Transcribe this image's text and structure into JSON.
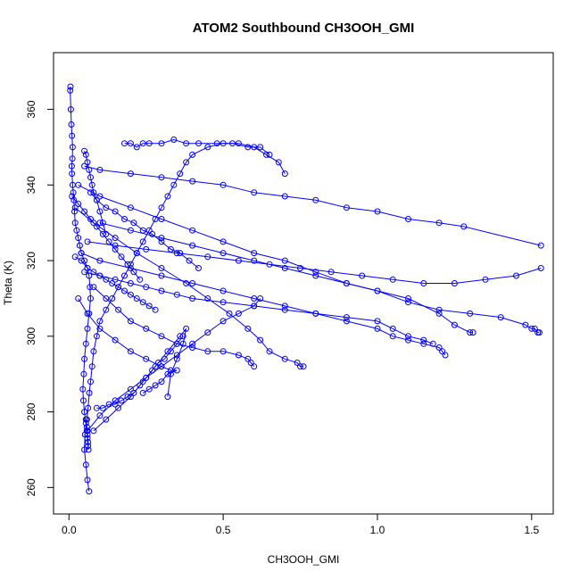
{
  "chart_data": {
    "type": "line",
    "title": "ATOM2 Southbound CH3OOH_GMI",
    "xlabel": "CH3OOH_GMI",
    "ylabel": "Theta (K)",
    "xlim": [
      -0.05,
      1.57
    ],
    "ylim": [
      253,
      375
    ],
    "xticks": [
      0.0,
      0.5,
      1.0,
      1.5
    ],
    "xtick_labels": [
      "0.0",
      "0.5",
      "1.0",
      "1.5"
    ],
    "yticks": [
      260,
      280,
      300,
      320,
      340,
      360
    ],
    "ytick_labels": [
      "260",
      "280",
      "300",
      "320",
      "340",
      "360"
    ],
    "grid": false,
    "legend": "none",
    "series_color": "#0000ff",
    "marker": "open-circle",
    "series": [
      {
        "x": [
          0.005,
          0.004,
          0.006,
          0.008,
          0.01,
          0.012,
          0.011,
          0.009,
          0.01,
          0.012,
          0.014,
          0.016,
          0.018,
          0.02,
          0.025,
          0.03,
          0.035,
          0.04,
          0.05,
          0.06,
          0.065,
          0.068,
          0.07,
          0.065,
          0.06,
          0.055,
          0.05,
          0.048,
          0.045,
          0.047,
          0.05,
          0.055,
          0.058,
          0.06,
          0.062,
          0.063,
          0.062,
          0.06,
          0.058,
          0.055
        ],
        "y": [
          366,
          365,
          360,
          356,
          353,
          350,
          347,
          345,
          343,
          340,
          338,
          336,
          333,
          330,
          328,
          326,
          324,
          322,
          320,
          318,
          316,
          313,
          310,
          306,
          302,
          298,
          294,
          290,
          286,
          283,
          280,
          277,
          275,
          273,
          271,
          270,
          272,
          274,
          276,
          278
        ]
      },
      {
        "x": [
          0.065,
          0.06,
          0.055,
          0.05,
          0.052,
          0.058,
          0.062,
          0.066,
          0.07,
          0.075,
          0.08,
          0.09,
          0.1,
          0.12,
          0.14,
          0.16,
          0.18,
          0.2,
          0.22,
          0.24,
          0.26,
          0.28,
          0.3,
          0.32,
          0.34,
          0.36,
          0.38,
          0.4,
          0.45,
          0.5,
          0.55,
          0.6,
          0.64,
          0.68,
          0.7
        ],
        "y": [
          259,
          262,
          266,
          270,
          274,
          278,
          281,
          285,
          288,
          292,
          296,
          300,
          304,
          307,
          310,
          313,
          316,
          319,
          322,
          325,
          328,
          331,
          334,
          337,
          340,
          343,
          346,
          348,
          350,
          351,
          351,
          350,
          348,
          346,
          343
        ]
      },
      {
        "x": [
          0.18,
          0.2,
          0.22,
          0.24,
          0.26,
          0.3,
          0.34,
          0.38,
          0.42,
          0.48,
          0.53,
          0.58,
          0.62,
          0.65
        ],
        "y": [
          351,
          351,
          350,
          351,
          351,
          351,
          352,
          351,
          351,
          351,
          351,
          350,
          350,
          348
        ]
      },
      {
        "x": [
          0.05,
          0.1,
          0.2,
          0.3,
          0.4,
          0.5,
          0.6,
          0.7,
          0.8,
          0.9,
          1.0,
          1.1,
          1.2,
          1.28,
          1.53
        ],
        "y": [
          345,
          344,
          343,
          342,
          341,
          340,
          338,
          337,
          336,
          334,
          333,
          331,
          330,
          329,
          324
        ]
      },
      {
        "x": [
          0.03,
          0.1,
          0.2,
          0.3,
          0.4,
          0.5,
          0.6,
          0.7,
          0.8,
          0.9,
          1.0,
          1.1,
          1.2,
          1.3,
          1.4,
          1.48,
          1.5,
          1.51,
          1.52,
          1.525
        ],
        "y": [
          340,
          337,
          334,
          331,
          328,
          325,
          322,
          320,
          317,
          314,
          312,
          309,
          307,
          306,
          305,
          303,
          302,
          302,
          301,
          301
        ]
      },
      {
        "x": [
          0.06,
          0.15,
          0.25,
          0.35,
          0.45,
          0.55,
          0.65,
          0.75,
          0.85,
          0.95,
          1.05,
          1.15,
          1.25,
          1.35,
          1.45,
          1.53
        ],
        "y": [
          325,
          324,
          323,
          322,
          321,
          320,
          319,
          318,
          317,
          316,
          315,
          314,
          314,
          315,
          316,
          318
        ]
      },
      {
        "x": [
          0.04,
          0.1,
          0.2,
          0.3,
          0.4,
          0.5,
          0.6,
          0.7,
          0.8,
          0.9,
          1.0,
          1.05,
          1.1,
          1.15,
          1.2,
          1.21,
          1.22
        ],
        "y": [
          322,
          320,
          318,
          316,
          314,
          312,
          310,
          308,
          306,
          304,
          302,
          300,
          299,
          298,
          297,
          296,
          295
        ]
      },
      {
        "x": [
          0.1,
          0.2,
          0.3,
          0.4,
          0.5,
          0.6,
          0.7,
          0.8,
          0.9,
          1.0,
          1.1,
          1.2,
          1.25,
          1.3,
          1.31
        ],
        "y": [
          330,
          328,
          326,
          324,
          322,
          320,
          318,
          316,
          314,
          312,
          310,
          306,
          303,
          301,
          301
        ]
      },
      {
        "x": [
          0.02,
          0.08,
          0.15,
          0.22,
          0.3,
          0.38,
          0.45,
          0.52,
          0.58,
          0.62,
          0.65,
          0.7,
          0.74,
          0.75,
          0.76
        ],
        "y": [
          334,
          330,
          326,
          322,
          318,
          314,
          310,
          306,
          302,
          299,
          296,
          294,
          293,
          292,
          292
        ]
      },
      {
        "x": [
          0.08,
          0.12,
          0.16,
          0.2,
          0.25,
          0.3,
          0.35,
          0.4,
          0.45,
          0.5,
          0.55,
          0.58,
          0.59,
          0.6
        ],
        "y": [
          313,
          310,
          307,
          304,
          302,
          300,
          298,
          297,
          296,
          296,
          295,
          294,
          293,
          292
        ]
      },
      {
        "x": [
          0.03,
          0.06,
          0.1,
          0.15,
          0.2,
          0.25,
          0.3,
          0.33,
          0.35,
          0.32,
          0.3,
          0.28,
          0.26,
          0.24
        ],
        "y": [
          310,
          306,
          302,
          299,
          296,
          294,
          292,
          291,
          291,
          290,
          288,
          287,
          286,
          285
        ]
      },
      {
        "x": [
          0.09,
          0.11,
          0.13,
          0.15,
          0.17,
          0.19,
          0.21,
          0.23,
          0.25,
          0.27,
          0.29,
          0.31,
          0.33,
          0.35,
          0.37
        ],
        "y": [
          281,
          281,
          282,
          282,
          283,
          284,
          285,
          287,
          289,
          291,
          293,
          294,
          296,
          298,
          300
        ]
      },
      {
        "x": [
          0.06,
          0.1,
          0.15,
          0.2,
          0.25,
          0.3,
          0.35,
          0.4,
          0.45,
          0.5,
          0.55,
          0.6,
          0.62
        ],
        "y": [
          275,
          279,
          283,
          286,
          289,
          292,
          295,
          298,
          301,
          304,
          306,
          308,
          310
        ]
      },
      {
        "x": [
          0.08,
          0.12,
          0.16,
          0.2,
          0.24,
          0.28,
          0.32,
          0.36,
          0.38,
          0.37,
          0.35,
          0.33,
          0.32
        ],
        "y": [
          275,
          278,
          281,
          284,
          288,
          292,
          296,
          300,
          302,
          298,
          294,
          290,
          284
        ]
      },
      {
        "x": [
          0.05,
          0.1,
          0.15,
          0.2,
          0.25,
          0.3,
          0.35,
          0.4,
          0.5,
          0.6,
          0.7,
          0.8,
          0.9,
          1.0,
          1.05,
          1.1,
          1.15,
          1.18
        ],
        "y": [
          317,
          316,
          315,
          314,
          313,
          312,
          311,
          310,
          309,
          308,
          307,
          306,
          305,
          304,
          302,
          300,
          299,
          298
        ]
      },
      {
        "x": [
          0.07,
          0.09,
          0.12,
          0.15,
          0.18,
          0.21,
          0.24,
          0.27,
          0.3,
          0.33,
          0.36,
          0.39,
          0.42
        ],
        "y": [
          338,
          336,
          334,
          333,
          331,
          330,
          328,
          327,
          325,
          323,
          322,
          320,
          318
        ]
      },
      {
        "x": [
          0.01,
          0.03,
          0.05,
          0.07,
          0.09,
          0.11,
          0.13,
          0.15,
          0.17,
          0.19,
          0.21,
          0.23
        ],
        "y": [
          337,
          335,
          333,
          331,
          329,
          327,
          325,
          323,
          321,
          319,
          317,
          315
        ]
      },
      {
        "x": [
          0.02,
          0.04,
          0.06,
          0.08,
          0.1,
          0.12,
          0.14,
          0.16,
          0.18,
          0.2,
          0.22,
          0.24,
          0.26,
          0.28
        ],
        "y": [
          321,
          320,
          318,
          317,
          316,
          315,
          314,
          313,
          312,
          311,
          310,
          309,
          308,
          307
        ]
      },
      {
        "x": [
          0.05,
          0.055,
          0.06,
          0.065,
          0.07,
          0.075,
          0.08,
          0.09,
          0.1,
          0.11,
          0.12
        ],
        "y": [
          349,
          348,
          346,
          344,
          342,
          340,
          338,
          336,
          333,
          330,
          327
        ]
      }
    ]
  }
}
